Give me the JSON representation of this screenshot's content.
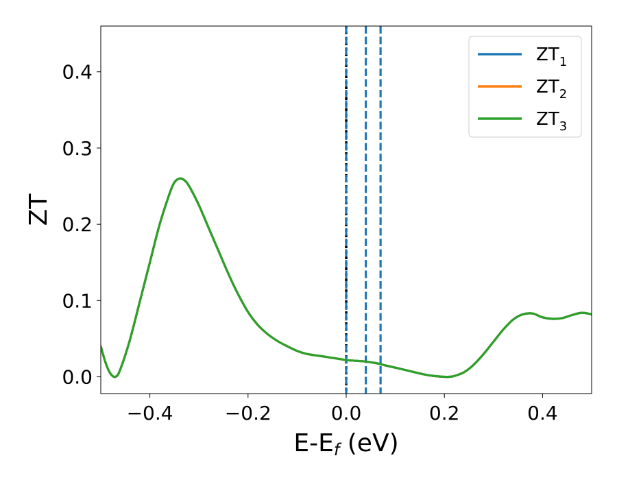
{
  "chart_data": {
    "type": "line",
    "xlabel_base": "E-E",
    "xlabel_sub": "f",
    "xlabel_unit": " (eV)",
    "ylabel": "ZT",
    "xlim": [
      -0.5,
      0.5
    ],
    "ylim": [
      -0.022,
      0.46
    ],
    "x_ticks": [
      -0.4,
      -0.2,
      0.0,
      0.2,
      0.4
    ],
    "x_tick_labels": [
      "−0.4",
      "−0.2",
      "0.0",
      "0.2",
      "0.4"
    ],
    "y_ticks": [
      0.0,
      0.1,
      0.2,
      0.3,
      0.4
    ],
    "y_tick_labels": [
      "0.0",
      "0.1",
      "0.2",
      "0.3",
      "0.4"
    ],
    "grid": false,
    "legend_position": "top-right",
    "series": [
      {
        "name_base": "ZT",
        "name_sub": "1",
        "color": "#1f77b4",
        "x": [
          -0.5,
          -0.49,
          -0.48,
          -0.47,
          -0.46,
          -0.44,
          -0.42,
          -0.4,
          -0.38,
          -0.36,
          -0.35,
          -0.34,
          -0.33,
          -0.32,
          -0.3,
          -0.28,
          -0.26,
          -0.24,
          -0.22,
          -0.2,
          -0.18,
          -0.16,
          -0.14,
          -0.12,
          -0.1,
          -0.08,
          -0.06,
          -0.04,
          -0.02,
          0.0,
          0.02,
          0.04,
          0.06,
          0.08,
          0.1,
          0.12,
          0.14,
          0.16,
          0.18,
          0.2,
          0.21,
          0.22,
          0.24,
          0.26,
          0.28,
          0.3,
          0.32,
          0.34,
          0.36,
          0.38,
          0.4,
          0.42,
          0.44,
          0.46,
          0.48,
          0.5
        ],
        "y": [
          0.04,
          0.018,
          0.004,
          0.0,
          0.01,
          0.05,
          0.1,
          0.15,
          0.2,
          0.24,
          0.255,
          0.26,
          0.258,
          0.25,
          0.225,
          0.195,
          0.165,
          0.135,
          0.108,
          0.085,
          0.068,
          0.056,
          0.047,
          0.04,
          0.034,
          0.03,
          0.028,
          0.026,
          0.024,
          0.022,
          0.021,
          0.02,
          0.018,
          0.015,
          0.012,
          0.009,
          0.006,
          0.003,
          0.001,
          0.0,
          0.0,
          0.001,
          0.006,
          0.016,
          0.03,
          0.046,
          0.062,
          0.075,
          0.082,
          0.083,
          0.078,
          0.076,
          0.077,
          0.081,
          0.084,
          0.082
        ]
      },
      {
        "name_base": "ZT",
        "name_sub": "2",
        "color": "#ff7f0e",
        "x": [
          -0.5,
          -0.49,
          -0.48,
          -0.47,
          -0.46,
          -0.44,
          -0.42,
          -0.4,
          -0.38,
          -0.36,
          -0.35,
          -0.34,
          -0.33,
          -0.32,
          -0.3,
          -0.28,
          -0.26,
          -0.24,
          -0.22,
          -0.2,
          -0.18,
          -0.16,
          -0.14,
          -0.12,
          -0.1,
          -0.08,
          -0.06,
          -0.04,
          -0.02,
          0.0,
          0.02,
          0.04,
          0.06,
          0.08,
          0.1,
          0.12,
          0.14,
          0.16,
          0.18,
          0.2,
          0.21,
          0.22,
          0.24,
          0.26,
          0.28,
          0.3,
          0.32,
          0.34,
          0.36,
          0.38,
          0.4,
          0.42,
          0.44,
          0.46,
          0.48,
          0.5
        ],
        "y": [
          0.04,
          0.018,
          0.004,
          0.0,
          0.01,
          0.05,
          0.1,
          0.15,
          0.2,
          0.24,
          0.255,
          0.26,
          0.258,
          0.25,
          0.225,
          0.195,
          0.165,
          0.135,
          0.108,
          0.085,
          0.068,
          0.056,
          0.047,
          0.04,
          0.034,
          0.03,
          0.028,
          0.026,
          0.024,
          0.022,
          0.021,
          0.02,
          0.018,
          0.015,
          0.012,
          0.009,
          0.006,
          0.003,
          0.001,
          0.0,
          0.0,
          0.001,
          0.006,
          0.016,
          0.03,
          0.046,
          0.062,
          0.075,
          0.082,
          0.083,
          0.078,
          0.076,
          0.077,
          0.081,
          0.084,
          0.082
        ]
      },
      {
        "name_base": "ZT",
        "name_sub": "3",
        "color": "#2ca02c",
        "x": [
          -0.5,
          -0.49,
          -0.48,
          -0.47,
          -0.46,
          -0.44,
          -0.42,
          -0.4,
          -0.38,
          -0.36,
          -0.35,
          -0.34,
          -0.33,
          -0.32,
          -0.3,
          -0.28,
          -0.26,
          -0.24,
          -0.22,
          -0.2,
          -0.18,
          -0.16,
          -0.14,
          -0.12,
          -0.1,
          -0.08,
          -0.06,
          -0.04,
          -0.02,
          0.0,
          0.02,
          0.04,
          0.06,
          0.08,
          0.1,
          0.12,
          0.14,
          0.16,
          0.18,
          0.2,
          0.21,
          0.22,
          0.24,
          0.26,
          0.28,
          0.3,
          0.32,
          0.34,
          0.36,
          0.38,
          0.4,
          0.42,
          0.44,
          0.46,
          0.48,
          0.5
        ],
        "y": [
          0.04,
          0.018,
          0.004,
          0.0,
          0.01,
          0.05,
          0.1,
          0.15,
          0.2,
          0.24,
          0.255,
          0.26,
          0.258,
          0.25,
          0.225,
          0.195,
          0.165,
          0.135,
          0.108,
          0.085,
          0.068,
          0.056,
          0.047,
          0.04,
          0.034,
          0.03,
          0.028,
          0.026,
          0.024,
          0.022,
          0.021,
          0.02,
          0.018,
          0.015,
          0.012,
          0.009,
          0.006,
          0.003,
          0.001,
          0.0,
          0.0,
          0.001,
          0.006,
          0.016,
          0.03,
          0.046,
          0.062,
          0.075,
          0.082,
          0.083,
          0.078,
          0.076,
          0.077,
          0.081,
          0.084,
          0.082
        ]
      }
    ],
    "vertical_lines": [
      {
        "x": 0.0,
        "color": "#000000",
        "style": "dotted"
      },
      {
        "x": 0.0,
        "color": "#1f77b4",
        "style": "dashed"
      },
      {
        "x": 0.04,
        "color": "#1f77b4",
        "style": "dashed"
      },
      {
        "x": 0.07,
        "color": "#1f77b4",
        "style": "dashed"
      }
    ]
  }
}
